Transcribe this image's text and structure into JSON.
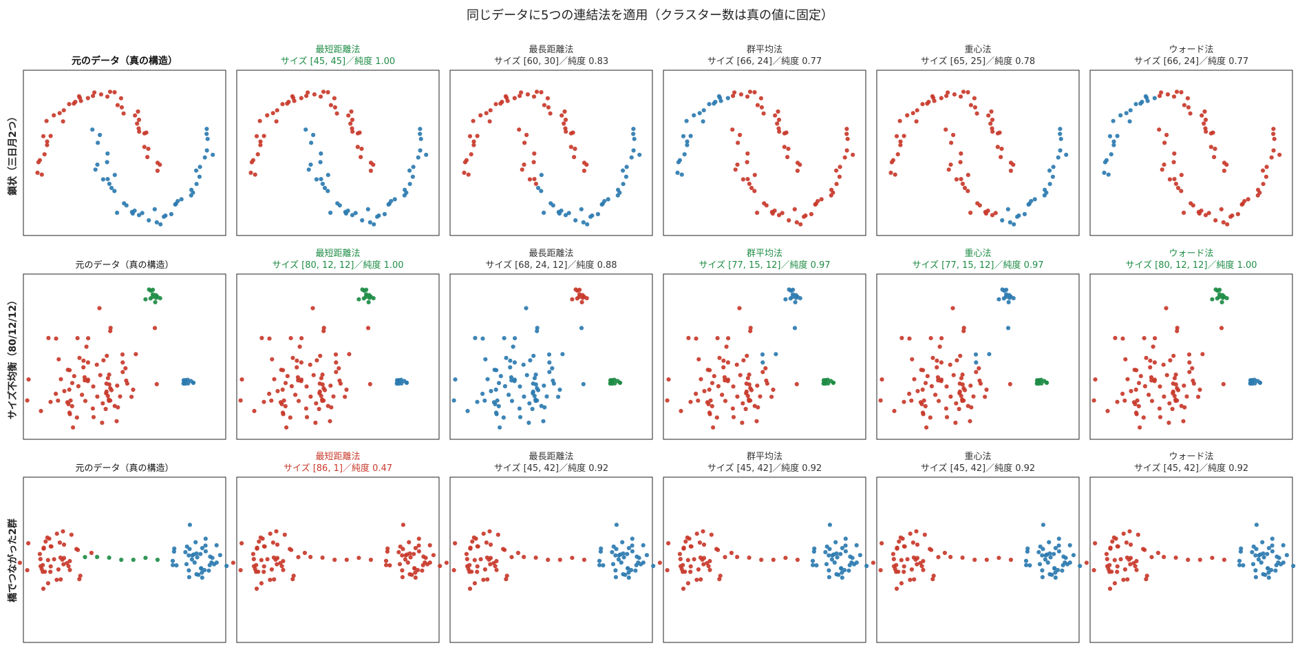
{
  "suptitle": "同じデータに5つの連結法を適用（クラスター数は真の値に固定）",
  "colors": {
    "0": "#c8392b",
    "1": "#2c7bb0",
    "2": "#1e8c45",
    "good": "#1e8c45",
    "bad": "#c8392b",
    "normal": "#333333"
  },
  "chart_data": [
    {
      "type": "scatter",
      "row_label": "鎖状（三日月2つ）",
      "dataset": "moons",
      "panels": [
        {
          "title": "元のデータ（真の構造）",
          "subtitle": "",
          "style": "bold",
          "n_clusters": 2,
          "sizes": [
            45,
            45
          ],
          "coloring": "truth"
        },
        {
          "title": "最短距離法",
          "subtitle": "サイズ [45, 45]／純度 1.00",
          "style": "good",
          "sizes": [
            45,
            45
          ],
          "purity": 1.0,
          "coloring": "truth"
        },
        {
          "title": "最長距離法",
          "subtitle": "サイズ [60, 30]／純度 0.83",
          "style": "normal",
          "sizes": [
            60,
            30
          ],
          "purity": 0.83,
          "coloring": "moons_complete"
        },
        {
          "title": "群平均法",
          "subtitle": "サイズ [66, 24]／純度 0.77",
          "style": "normal",
          "sizes": [
            66,
            24
          ],
          "purity": 0.77,
          "coloring": "moons_left_blue"
        },
        {
          "title": "重心法",
          "subtitle": "サイズ [65, 25]／純度 0.78",
          "style": "normal",
          "sizes": [
            65,
            25
          ],
          "purity": 0.78,
          "coloring": "moons_centroid"
        },
        {
          "title": "ウォード法",
          "subtitle": "サイズ [66, 24]／純度 0.77",
          "style": "normal",
          "sizes": [
            66,
            24
          ],
          "purity": 0.77,
          "coloring": "moons_left_blue"
        }
      ]
    },
    {
      "type": "scatter",
      "row_label": "サイズ不均衡（80/12/12）",
      "dataset": "imbalanced",
      "panels": [
        {
          "title": "元のデータ（真の構造）",
          "subtitle": "",
          "style": "plain",
          "sizes": [
            80,
            12,
            12
          ],
          "coloring": "truth"
        },
        {
          "title": "最短距離法",
          "subtitle": "サイズ [80, 12, 12]／純度 1.00",
          "style": "good",
          "sizes": [
            80,
            12,
            12
          ],
          "purity": 1.0,
          "coloring": "truth"
        },
        {
          "title": "最長距離法",
          "subtitle": "サイズ [68, 24, 12]／純度 0.88",
          "style": "normal",
          "sizes": [
            68,
            24,
            12
          ],
          "purity": 0.88,
          "coloring": "imb_complete"
        },
        {
          "title": "群平均法",
          "subtitle": "サイズ [77, 15, 12]／純度 0.97",
          "style": "good",
          "sizes": [
            77,
            15,
            12
          ],
          "purity": 0.97,
          "coloring": "imb_avg"
        },
        {
          "title": "重心法",
          "subtitle": "サイズ [77, 15, 12]／純度 0.97",
          "style": "good",
          "sizes": [
            77,
            15,
            12
          ],
          "purity": 0.97,
          "coloring": "imb_avg"
        },
        {
          "title": "ウォード法",
          "subtitle": "サイズ [80, 12, 12]／純度 1.00",
          "style": "good",
          "sizes": [
            80,
            12,
            12
          ],
          "purity": 1.0,
          "coloring": "imb_ward"
        }
      ]
    },
    {
      "type": "scatter",
      "row_label": "橋でつながった2群",
      "dataset": "bridge",
      "panels": [
        {
          "title": "元のデータ（真の構造）",
          "subtitle": "",
          "style": "plain",
          "sizes": [
            45,
            42,
            7
          ],
          "coloring": "truth"
        },
        {
          "title": "最短距離法",
          "subtitle": "サイズ [86, 1]／純度 0.47",
          "style": "bad",
          "sizes": [
            86,
            1
          ],
          "purity": 0.47,
          "coloring": "bridge_single"
        },
        {
          "title": "最長距離法",
          "subtitle": "サイズ [45, 42]／純度 0.92",
          "style": "normal",
          "sizes": [
            45,
            42
          ],
          "purity": 0.92,
          "coloring": "bridge_split"
        },
        {
          "title": "群平均法",
          "subtitle": "サイズ [45, 42]／純度 0.92",
          "style": "normal",
          "sizes": [
            45,
            42
          ],
          "purity": 0.92,
          "coloring": "bridge_split"
        },
        {
          "title": "重心法",
          "subtitle": "サイズ [45, 42]／純度 0.92",
          "style": "normal",
          "sizes": [
            45,
            42
          ],
          "purity": 0.92,
          "coloring": "bridge_split"
        },
        {
          "title": "ウォード法",
          "subtitle": "サイズ [45, 42]／純度 0.92",
          "style": "normal",
          "sizes": [
            45,
            42
          ],
          "purity": 0.92,
          "coloring": "bridge_split"
        }
      ]
    }
  ]
}
